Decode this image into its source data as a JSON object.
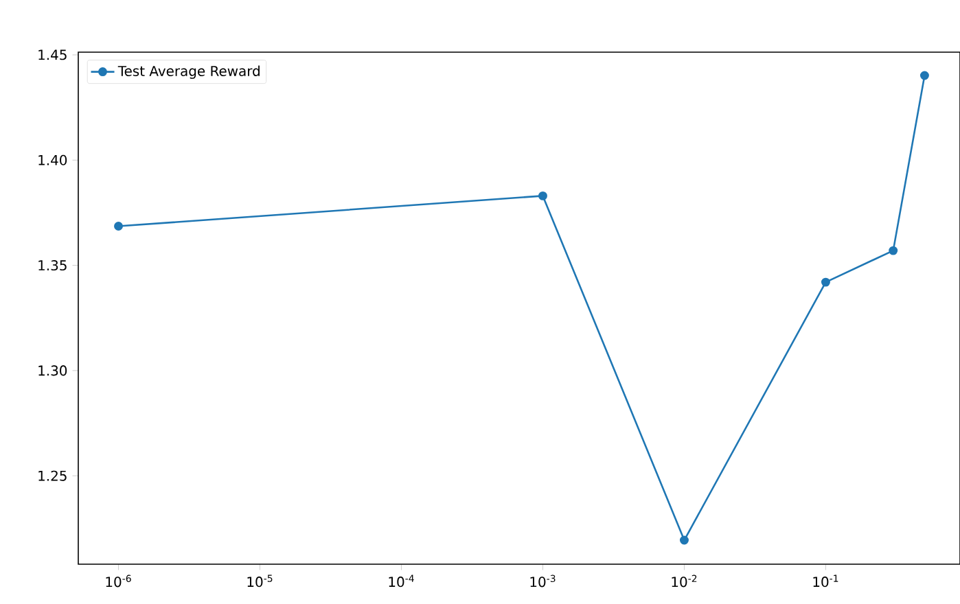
{
  "chart_data": {
    "type": "line",
    "log": "x",
    "grid": false,
    "legend": "top left",
    "marker": "circle",
    "line_style": "solid",
    "x": [
      1e-06,
      0.001,
      0.01,
      0.1,
      0.3,
      0.5
    ],
    "series": [
      {
        "name": "Test Average Reward",
        "color": "#1f77b4",
        "values": [
          1.3686,
          1.383,
          1.2194,
          1.342,
          1.357,
          1.4402
        ]
      }
    ],
    "xlim": [
      5.2e-07,
      0.89
    ],
    "ylim": [
      1.208,
      1.4513
    ],
    "xticks": [
      {
        "value": 1e-06,
        "label": "10$^{-6}$"
      },
      {
        "value": 1e-05,
        "label": "10$^{-5}$"
      },
      {
        "value": 0.0001,
        "label": "10$^{-4}$"
      },
      {
        "value": 0.001,
        "label": "10$^{-3}$"
      },
      {
        "value": 0.01,
        "label": "10$^{-2}$"
      },
      {
        "value": 0.1,
        "label": "10$^{-1}$"
      }
    ],
    "yticks": [
      {
        "value": 1.25,
        "label": "1.25"
      },
      {
        "value": 1.3,
        "label": "1.30"
      },
      {
        "value": 1.35,
        "label": "1.35"
      },
      {
        "value": 1.4,
        "label": "1.40"
      },
      {
        "value": 1.45,
        "label": "1.45"
      }
    ]
  }
}
